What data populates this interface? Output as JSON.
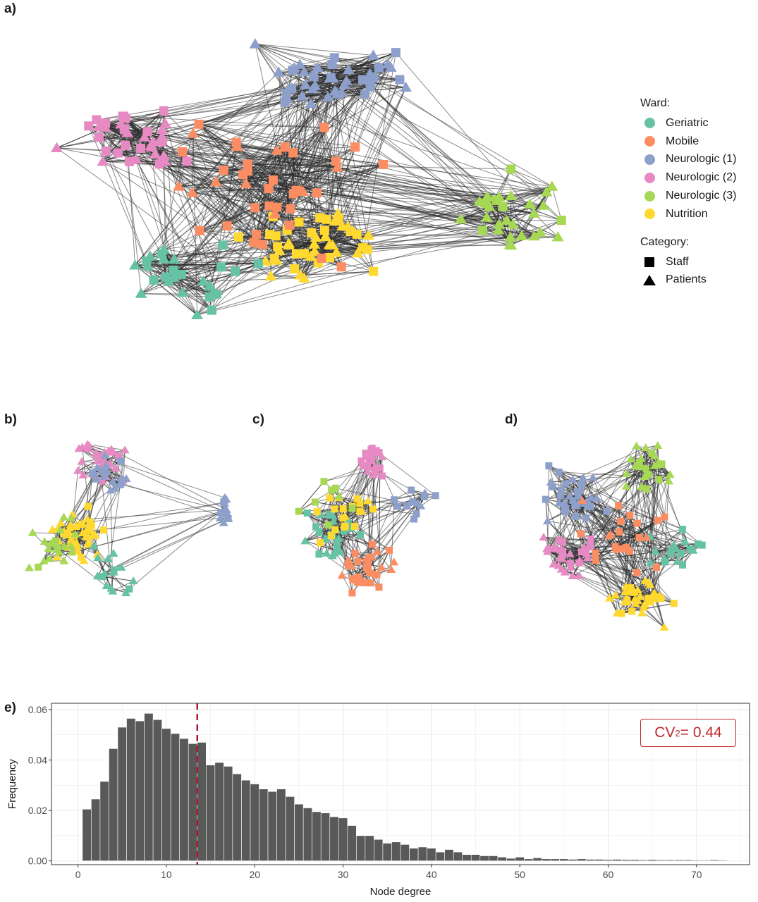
{
  "panels": {
    "a": "a)",
    "b": "b)",
    "c": "c)",
    "d": "d)",
    "e": "e)"
  },
  "legend": {
    "ward_title": "Ward:",
    "wards": [
      {
        "name": "Geriatric",
        "color": "#66c2a5"
      },
      {
        "name": "Mobile",
        "color": "#fc8d62"
      },
      {
        "name": "Neurologic (1)",
        "color": "#8da0cb"
      },
      {
        "name": "Neurologic (2)",
        "color": "#e78ac3"
      },
      {
        "name": "Neurologic (3)",
        "color": "#a6d854"
      },
      {
        "name": "Nutrition",
        "color": "#ffd92f"
      }
    ],
    "category_title": "Category:",
    "categories": [
      {
        "name": "Staff",
        "shape": "square"
      },
      {
        "name": "Patients",
        "shape": "triangle"
      }
    ]
  },
  "chart_data": {
    "type": "bar",
    "xlabel": "Node degree",
    "ylabel": "Frequency",
    "xlim": [
      -3,
      76
    ],
    "ylim": [
      -0.0015,
      0.0625
    ],
    "xticks": [
      0,
      10,
      20,
      30,
      40,
      50,
      60,
      70
    ],
    "yticks": [
      0.0,
      0.02,
      0.04,
      0.06
    ],
    "ytick_labels": [
      "0.00",
      "0.02",
      "0.04",
      "0.06"
    ],
    "categories": [
      1,
      2,
      3,
      4,
      5,
      6,
      7,
      8,
      9,
      10,
      11,
      12,
      13,
      14,
      15,
      16,
      17,
      18,
      19,
      20,
      21,
      22,
      23,
      24,
      25,
      26,
      27,
      28,
      29,
      30,
      31,
      32,
      33,
      34,
      35,
      36,
      37,
      38,
      39,
      40,
      41,
      42,
      43,
      44,
      45,
      46,
      47,
      48,
      49,
      50,
      51,
      52,
      53,
      54,
      55,
      56,
      57,
      58,
      59,
      60,
      61,
      62,
      63,
      64,
      65,
      66,
      67,
      68,
      69,
      70,
      71,
      72,
      73
    ],
    "values": [
      0.0205,
      0.0245,
      0.0315,
      0.0445,
      0.053,
      0.0565,
      0.0555,
      0.0585,
      0.056,
      0.0525,
      0.0505,
      0.0485,
      0.0465,
      0.047,
      0.038,
      0.039,
      0.0375,
      0.0345,
      0.032,
      0.0305,
      0.0285,
      0.0275,
      0.0285,
      0.0255,
      0.0225,
      0.021,
      0.0195,
      0.019,
      0.0175,
      0.017,
      0.014,
      0.01,
      0.01,
      0.0085,
      0.007,
      0.0075,
      0.0065,
      0.005,
      0.0055,
      0.005,
      0.0035,
      0.0045,
      0.0035,
      0.0025,
      0.0025,
      0.002,
      0.002,
      0.0015,
      0.001,
      0.0015,
      0.0008,
      0.0012,
      0.0008,
      0.0008,
      0.0008,
      0.0006,
      0.0008,
      0.0006,
      0.0006,
      0.0005,
      0.0006,
      0.0005,
      0.0005,
      0.0004,
      0.0005,
      0.0004,
      0.0004,
      0.0004,
      0.0004,
      0.0003,
      0.0003,
      0.0004,
      0.0003
    ],
    "mean_line": {
      "x": 13.5,
      "color": "#b2182b"
    },
    "annotation": {
      "prefix": "CV",
      "sup": "2",
      "suffix": " = 0.44"
    }
  }
}
